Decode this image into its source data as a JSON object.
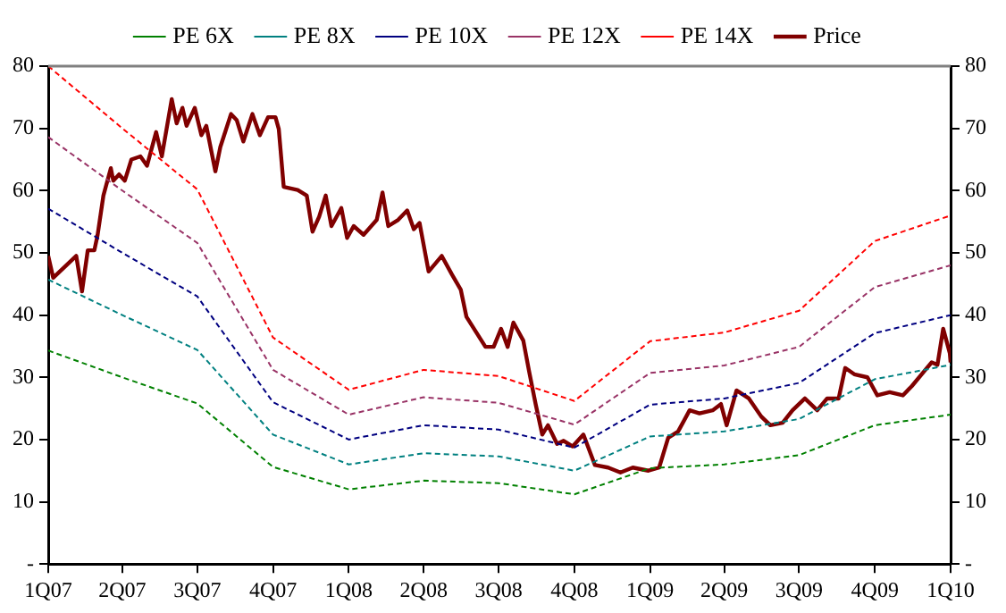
{
  "chart_data": {
    "type": "line",
    "legend": "top",
    "marker": "none",
    "grid": false,
    "x": [
      "2007-01-01",
      "2007-04-01",
      "2007-07-01",
      "2007-10-01",
      "2008-01-01",
      "2008-04-01",
      "2008-07-01",
      "2008-10-01",
      "2009-01-01",
      "2009-04-01",
      "2009-07-01",
      "2009-10-01",
      "2010-01-01"
    ],
    "xlim": [
      "2007-01-01",
      "2010-01-01"
    ],
    "xticks": [
      {
        "value": "2007-01-01",
        "label": "1Q07"
      },
      {
        "value": "2007-04-01",
        "label": "2Q07"
      },
      {
        "value": "2007-07-01",
        "label": "3Q07"
      },
      {
        "value": "2007-10-01",
        "label": "4Q07"
      },
      {
        "value": "2008-01-01",
        "label": "1Q08"
      },
      {
        "value": "2008-04-01",
        "label": "2Q08"
      },
      {
        "value": "2008-07-01",
        "label": "3Q08"
      },
      {
        "value": "2008-10-01",
        "label": "4Q08"
      },
      {
        "value": "2009-01-01",
        "label": "1Q09"
      },
      {
        "value": "2009-04-01",
        "label": "2Q09"
      },
      {
        "value": "2009-07-01",
        "label": "3Q09"
      },
      {
        "value": "2009-10-01",
        "label": "4Q09"
      },
      {
        "value": "2010-01-01",
        "label": "1Q10"
      }
    ],
    "ylim": [
      0,
      80
    ],
    "yticks": [
      {
        "value": 0,
        "label": "-"
      },
      10,
      20,
      30,
      40,
      50,
      60,
      70,
      80
    ],
    "y2lim": [
      0,
      80
    ],
    "y2ticks": [
      {
        "value": 0,
        "label": "-"
      },
      10,
      20,
      30,
      40,
      50,
      60,
      70,
      80
    ],
    "series": [
      {
        "name": "PE 6X",
        "color": "#008000",
        "line_style": "dashed",
        "values": [
          34.3,
          30,
          25.8,
          15.6,
          12,
          13.4,
          13,
          11.2,
          15.4,
          16,
          17.5,
          22.3,
          24
        ]
      },
      {
        "name": "PE 8X",
        "color": "#008080",
        "line_style": "dashed",
        "values": [
          45.7,
          40,
          34.4,
          20.8,
          16,
          17.8,
          17.3,
          15,
          20.5,
          21.3,
          23.3,
          29.7,
          32
        ]
      },
      {
        "name": "PE 10X",
        "color": "#000080",
        "line_style": "dashed",
        "values": [
          57.1,
          50,
          43,
          26,
          20,
          22.3,
          21.6,
          18.7,
          25.6,
          26.6,
          29.1,
          37.1,
          40
        ]
      },
      {
        "name": "PE 12X",
        "color": "#993366",
        "line_style": "dashed",
        "values": [
          68.6,
          60,
          51.6,
          31.2,
          24,
          26.8,
          25.9,
          22.4,
          30.7,
          31.9,
          34.9,
          44.5,
          48
        ]
      },
      {
        "name": "PE 14X",
        "color": "#ff0000",
        "line_style": "dashed",
        "values": [
          80,
          70,
          60.2,
          36.4,
          28,
          31.2,
          30.2,
          26.2,
          35.8,
          37.2,
          40.7,
          51.9,
          56
        ]
      },
      {
        "name": "Price",
        "color": "#800000",
        "line_style": "solid",
        "x": [
          "2007-01-01",
          "2007-01-07",
          "2007-02-04",
          "2007-02-11",
          "2007-02-18",
          "2007-02-26",
          "2007-03-02",
          "2007-03-09",
          "2007-03-18",
          "2007-03-21",
          "2007-03-28",
          "2007-04-04",
          "2007-04-12",
          "2007-04-23",
          "2007-05-01",
          "2007-05-12",
          "2007-05-19",
          "2007-05-31",
          "2007-06-06",
          "2007-06-13",
          "2007-06-18",
          "2007-06-28",
          "2007-07-06",
          "2007-07-12",
          "2007-07-23",
          "2007-07-29",
          "2007-08-11",
          "2007-08-18",
          "2007-08-26",
          "2007-09-06",
          "2007-09-15",
          "2007-09-25",
          "2007-10-04",
          "2007-10-08",
          "2007-10-14",
          "2007-10-31",
          "2007-11-11",
          "2007-11-18",
          "2007-11-26",
          "2007-12-04",
          "2007-12-11",
          "2007-12-23",
          "2007-12-30",
          "2008-01-07",
          "2008-01-19",
          "2008-02-04",
          "2008-02-11",
          "2008-02-18",
          "2008-03-01",
          "2008-03-12",
          "2008-03-20",
          "2008-03-27",
          "2008-04-07",
          "2008-04-23",
          "2008-05-05",
          "2008-05-16",
          "2008-05-23",
          "2008-06-15",
          "2008-06-25",
          "2008-07-04",
          "2008-07-12",
          "2008-07-19",
          "2008-07-31",
          "2008-08-07",
          "2008-08-15",
          "2008-08-23",
          "2008-08-30",
          "2008-09-10",
          "2008-09-18",
          "2008-09-29",
          "2008-10-12",
          "2008-10-26",
          "2008-11-11",
          "2008-11-26",
          "2008-12-11",
          "2008-12-30",
          "2009-01-12",
          "2009-01-23",
          "2009-02-04",
          "2009-02-18",
          "2009-03-02",
          "2009-03-18",
          "2009-03-28",
          "2009-04-04",
          "2009-04-16",
          "2009-05-01",
          "2009-05-16",
          "2009-05-27",
          "2009-06-11",
          "2009-06-23",
          "2009-07-08",
          "2009-07-23",
          "2009-08-04",
          "2009-08-18",
          "2009-08-26",
          "2009-09-06",
          "2009-09-22",
          "2009-10-04",
          "2009-10-19",
          "2009-11-04",
          "2009-11-15",
          "2009-11-30",
          "2009-12-09",
          "2009-12-16",
          "2009-12-23",
          "2009-12-31",
          "2010-01-01"
        ],
        "values": [
          49.5,
          46,
          49.5,
          43.8,
          50.4,
          50.4,
          52.9,
          59.2,
          63.6,
          61.6,
          62.6,
          61.6,
          65,
          65.5,
          64,
          69.4,
          65.5,
          74.7,
          70.8,
          73.3,
          70.4,
          73.3,
          68.9,
          70.4,
          63.1,
          67,
          72.3,
          71.3,
          67.9,
          72.3,
          68.9,
          71.8,
          71.8,
          69.9,
          60.6,
          60.1,
          59.2,
          53.4,
          55.8,
          59.2,
          54.3,
          57.2,
          52.4,
          54.3,
          52.9,
          55.3,
          59.7,
          54.3,
          55.3,
          56.8,
          53.8,
          54.8,
          47,
          49.5,
          46.6,
          44.1,
          39.7,
          34.9,
          34.9,
          37.8,
          34.9,
          38.8,
          35.9,
          31,
          25.7,
          20.8,
          22.3,
          19.3,
          19.8,
          18.9,
          20.8,
          15.9,
          15.5,
          14.7,
          15.5,
          15,
          15.5,
          20.3,
          21.3,
          24.7,
          24.2,
          24.7,
          25.7,
          22.3,
          27.9,
          26.6,
          23.7,
          22.3,
          22.7,
          24.7,
          26.6,
          24.7,
          26.6,
          26.6,
          31.5,
          30.5,
          30,
          27.1,
          27.6,
          27.1,
          28.6,
          31,
          32.4,
          32,
          37.8,
          33.9,
          32.4
        ]
      }
    ]
  }
}
